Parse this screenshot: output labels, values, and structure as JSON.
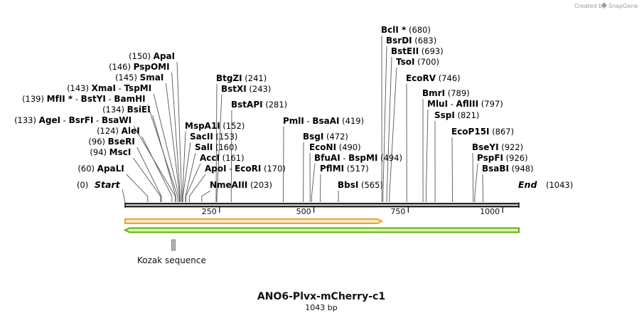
{
  "credit": {
    "text": "Created by",
    "brand": "SnapGene"
  },
  "title": "ANO6-Plvx-mCherry-c1",
  "subtitle": "1043 bp",
  "sequence": {
    "length": 1043,
    "start_label": "Start",
    "start_pos": "(0)",
    "end_label": "End",
    "end_pos": "(1043)"
  },
  "ticks": [
    250,
    500,
    750,
    1000
  ],
  "sites": [
    {
      "left": "(60)",
      "names": [
        "ApaLI"
      ],
      "right": "",
      "pos": 60
    },
    {
      "left": "(94)",
      "names": [
        "MscI"
      ],
      "right": "",
      "pos": 94
    },
    {
      "left": "(96)",
      "names": [
        "BseRI"
      ],
      "right": "",
      "pos": 96
    },
    {
      "left": "(124)",
      "names": [
        "AleI"
      ],
      "right": "",
      "pos": 124
    },
    {
      "left": "(133)",
      "names": [
        "AgeI",
        "BsrFI",
        "BsaWI"
      ],
      "right": "",
      "pos": 133
    },
    {
      "left": "(134)",
      "names": [
        "BsiEI"
      ],
      "right": "",
      "pos": 134
    },
    {
      "left": "(139)",
      "names": [
        "MfII *",
        "BstYI",
        "BamHI"
      ],
      "right": "",
      "pos": 139
    },
    {
      "left": "(143)",
      "names": [
        "XmaI",
        "TspMI"
      ],
      "right": "",
      "pos": 143
    },
    {
      "left": "(145)",
      "names": [
        "SmaI"
      ],
      "right": "",
      "pos": 145
    },
    {
      "left": "(146)",
      "names": [
        "PspOMI"
      ],
      "right": "",
      "pos": 146
    },
    {
      "left": "(150)",
      "names": [
        "ApaI"
      ],
      "right": "",
      "pos": 150
    },
    {
      "left": "",
      "names": [
        "MspA1I"
      ],
      "right": "(152)",
      "pos": 152
    },
    {
      "left": "",
      "names": [
        "SacII"
      ],
      "right": "(153)",
      "pos": 153
    },
    {
      "left": "",
      "names": [
        "SalI"
      ],
      "right": "(160)",
      "pos": 160
    },
    {
      "left": "",
      "names": [
        "AccI"
      ],
      "right": "(161)",
      "pos": 161
    },
    {
      "left": "",
      "names": [
        "ApoI",
        "EcoRI"
      ],
      "right": "(170)",
      "pos": 170
    },
    {
      "left": "",
      "names": [
        "NmeAIII"
      ],
      "right": "(203)",
      "pos": 203
    },
    {
      "left": "",
      "names": [
        "BtgZI"
      ],
      "right": "(241)",
      "pos": 241
    },
    {
      "left": "",
      "names": [
        "BstXI"
      ],
      "right": "(243)",
      "pos": 243
    },
    {
      "left": "",
      "names": [
        "BstAPI"
      ],
      "right": "(281)",
      "pos": 281
    },
    {
      "left": "",
      "names": [
        "PmlI",
        "BsaAI"
      ],
      "right": "(419)",
      "pos": 419
    },
    {
      "left": "",
      "names": [
        "BsgI"
      ],
      "right": "(472)",
      "pos": 472
    },
    {
      "left": "",
      "names": [
        "EcoNI"
      ],
      "right": "(490)",
      "pos": 490
    },
    {
      "left": "",
      "names": [
        "BfuAI",
        "BspMI"
      ],
      "right": "(494)",
      "pos": 494
    },
    {
      "left": "",
      "names": [
        "PflMI"
      ],
      "right": "(517)",
      "pos": 517
    },
    {
      "left": "",
      "names": [
        "BbsI"
      ],
      "right": "(565)",
      "pos": 565
    },
    {
      "left": "",
      "names": [
        "BclI *"
      ],
      "right": "(680)",
      "pos": 680
    },
    {
      "left": "",
      "names": [
        "BsrDI"
      ],
      "right": "(683)",
      "pos": 683
    },
    {
      "left": "",
      "names": [
        "BstEII"
      ],
      "right": "(693)",
      "pos": 693
    },
    {
      "left": "",
      "names": [
        "TsoI"
      ],
      "right": "(700)",
      "pos": 700
    },
    {
      "left": "",
      "names": [
        "EcoRV"
      ],
      "right": "(746)",
      "pos": 746
    },
    {
      "left": "",
      "names": [
        "BmrI"
      ],
      "right": "(789)",
      "pos": 789
    },
    {
      "left": "",
      "names": [
        "MluI",
        "AflIII"
      ],
      "right": "(797)",
      "pos": 797
    },
    {
      "left": "",
      "names": [
        "SspI"
      ],
      "right": "(821)",
      "pos": 821
    },
    {
      "left": "",
      "names": [
        "EcoP15I"
      ],
      "right": "(867)",
      "pos": 867
    },
    {
      "left": "",
      "names": [
        "BseYI"
      ],
      "right": "(922)",
      "pos": 922
    },
    {
      "left": "",
      "names": [
        "PspFI"
      ],
      "right": "(926)",
      "pos": 926
    },
    {
      "left": "",
      "names": [
        "BsaBI"
      ],
      "right": "(948)",
      "pos": 948
    }
  ],
  "features": {
    "orange_start": 0,
    "orange_end": 680,
    "green_start": 0,
    "green_end": 1043,
    "kozak_pos": 128,
    "kozak_label": "Kozak sequence"
  },
  "colors": {
    "orange": "#f0a02a",
    "orange_fill": "#fde7c2",
    "green": "#5fb400",
    "green_fill": "#d9f0bd",
    "line": "#555555",
    "kozak": "#b0b4b8"
  }
}
